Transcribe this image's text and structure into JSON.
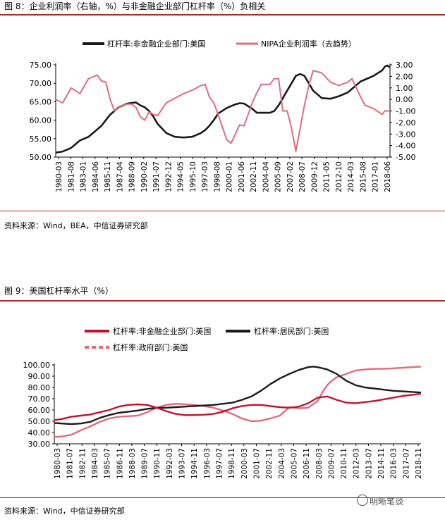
{
  "figure1": {
    "title": "图 8：企业利润率（右轴，%）与非金融企业部门杠杆率（%）负相关",
    "source": "资料来源：Wind，BEA，中信证券研究部"
  },
  "figure2": {
    "title": "图 9：美国杠杆率水平（%）",
    "source": "资料来源：Wind，中信证券研究部"
  },
  "watermark": {
    "text": "明晰笔谈"
  },
  "colors": {
    "black": "#1a1a1a",
    "pink": "#e06b7d",
    "red": "#c8102e",
    "rule": "#b3262d"
  },
  "chart_data": [
    {
      "type": "line",
      "legend_position": "top",
      "grid": false,
      "x_tick_labels": [
        "1980-03",
        "1981-08",
        "1983-01",
        "1984-06",
        "1985-11",
        "1987-04",
        "1988-09",
        "1990-02",
        "1991-07",
        "1992-12",
        "1994-05",
        "1995-10",
        "1997-03",
        "1998-08",
        "2000-01",
        "2001-06",
        "2002-11",
        "2004-04",
        "2005-09",
        "2007-02",
        "2008-07",
        "2009-12",
        "2011-05",
        "2012-10",
        "2014-03",
        "2015-08",
        "2017-01",
        "2018-06"
      ],
      "x": [
        1980.2,
        1981,
        1982,
        1983,
        1984,
        1985,
        1985.5,
        1986,
        1986.5,
        1987,
        1987.5,
        1988,
        1988.5,
        1989,
        1989.5,
        1990,
        1990.5,
        1991,
        1991.5,
        1992,
        1993,
        1994,
        1995,
        1996,
        1997,
        1997.5,
        1998,
        1998.5,
        1999,
        2000,
        2000.5,
        2001,
        2001.5,
        2002,
        2003,
        2003.5,
        2004,
        2005,
        2005.5,
        2006,
        2006.5,
        2007,
        2007.5,
        2008,
        2008.5,
        2009,
        2009.5,
        2010,
        2011,
        2012,
        2013,
        2014,
        2014.5,
        2015,
        2015.5,
        2016,
        2017,
        2018,
        2018.3,
        2018.6,
        2018.9
      ],
      "y_left": {
        "range": [
          50,
          75
        ],
        "ticks": [
          "50.00",
          "55.00",
          "60.00",
          "65.00",
          "70.00",
          "75.00"
        ]
      },
      "y_right": {
        "range": [
          -5,
          3
        ],
        "ticks": [
          "-5.00",
          "-4.00",
          "-3.00",
          "-2.00",
          "-1.00",
          "0.00",
          "1.00",
          "2.00",
          "3.00"
        ]
      },
      "series": [
        {
          "name": "杠杆率:非金融企业部门:美国",
          "axis": "left",
          "color": "#1a1a1a",
          "values": [
            51.2,
            51.5,
            52.5,
            54.5,
            55.5,
            57.5,
            58.5,
            60,
            61.5,
            62.5,
            63.5,
            64,
            64.5,
            64.7,
            64.8,
            64,
            63.5,
            62.5,
            61,
            59,
            56.5,
            55.5,
            55.3,
            55.5,
            56.5,
            57.3,
            58.5,
            60,
            61.8,
            63.3,
            63.8,
            64.3,
            64.6,
            64.5,
            63,
            62,
            62,
            62,
            62.5,
            64,
            66,
            68,
            70,
            72,
            72.5,
            72,
            70,
            68,
            66,
            65.8,
            66.5,
            67.5,
            68.5,
            69.5,
            70.5,
            71,
            72,
            73.5,
            74.5,
            74.8,
            74.3
          ]
        },
        {
          "name": "NIPA企业利润率（去趋势）",
          "axis": "right",
          "color": "#e06b7d",
          "values": [
            0,
            -0.3,
            1,
            0.5,
            1.8,
            2.1,
            1.6,
            1.5,
            0,
            -1,
            -0.7,
            -0.5,
            -0.4,
            -0.4,
            -0.7,
            -1.5,
            -1.8,
            -1.1,
            -1.3,
            -1.4,
            -0.3,
            0.1,
            0.5,
            0.8,
            1.2,
            1.3,
            0.2,
            -0.3,
            -1.3,
            -3.5,
            -3.8,
            -3,
            -2.2,
            -2.3,
            -0.2,
            0.6,
            1.3,
            1.3,
            1.8,
            1.8,
            -1,
            -1,
            -2.5,
            -4.5,
            -2.5,
            -0.5,
            1.2,
            2.5,
            2.3,
            1.5,
            1.2,
            1.5,
            1.8,
            1.0,
            0.2,
            -0.5,
            -0.8,
            -1.3,
            -1.0,
            -1.0,
            -1.0
          ]
        }
      ]
    },
    {
      "type": "line",
      "legend_position": "top",
      "grid": false,
      "x_tick_labels": [
        "1980-03",
        "1981-07",
        "1982-11",
        "1984-03",
        "1985-07",
        "1986-11",
        "1988-03",
        "1989-07",
        "1990-11",
        "1992-03",
        "1993-07",
        "1994-11",
        "1996-03",
        "1997-07",
        "1998-11",
        "2000-03",
        "2001-07",
        "2002-11",
        "2004-03",
        "2005-07",
        "2006-11",
        "2008-03",
        "2009-07",
        "2010-11",
        "2012-03",
        "2013-07",
        "2014-11",
        "2016-03",
        "2017-07",
        "2018-11"
      ],
      "y": {
        "range": [
          30,
          100
        ],
        "ticks": [
          "30.00",
          "40.00",
          "50.00",
          "60.00",
          "70.00",
          "80.00",
          "90.00",
          "100.00"
        ]
      },
      "series": [
        {
          "name": "杠杆率:非金融企业部门:美国",
          "color": "#c8102e",
          "style": "solid",
          "x": [
            1980.2,
            1981,
            1982,
            1983,
            1984,
            1985,
            1986,
            1987,
            1988,
            1989,
            1990,
            1991,
            1992,
            1993,
            1994,
            1995,
            1996,
            1997,
            1998,
            1999,
            2000,
            2001,
            2002,
            2003,
            2004,
            2005,
            2006,
            2007,
            2008,
            2009,
            2010,
            2011,
            2012,
            2013,
            2014,
            2015,
            2016,
            2017,
            2018,
            2018.9
          ],
          "values": [
            51,
            52,
            54,
            55,
            56,
            58,
            60,
            63,
            64.5,
            65,
            64.5,
            62,
            59,
            56.5,
            55.5,
            55.5,
            55.8,
            56.5,
            58.5,
            61.5,
            63.5,
            64.5,
            64.5,
            63.5,
            62.5,
            62,
            63,
            66,
            71,
            72,
            69,
            66.5,
            66,
            67,
            68,
            69.5,
            71,
            72.5,
            73.5,
            74.5
          ]
        },
        {
          "name": "杠杆率:居民部门:美国",
          "color": "#1a1a1a",
          "style": "solid",
          "x": [
            1980.2,
            1981,
            1982,
            1983,
            1984,
            1985,
            1986,
            1987,
            1988,
            1989,
            1990,
            1991,
            1992,
            1993,
            1994,
            1995,
            1996,
            1997,
            1998,
            1999,
            2000,
            2001,
            2002,
            2003,
            2004,
            2005,
            2006,
            2007,
            2007.5,
            2008,
            2009,
            2010,
            2011,
            2012,
            2013,
            2014,
            2015,
            2016,
            2017,
            2018,
            2018.9
          ],
          "values": [
            48.5,
            48,
            47.5,
            48,
            49.5,
            53,
            55.5,
            57.5,
            58.5,
            59.5,
            61,
            62,
            62,
            62.5,
            63,
            63.5,
            64,
            64.5,
            65.5,
            66.5,
            69,
            72,
            77,
            83,
            88,
            92,
            95.5,
            98,
            98.5,
            98,
            96,
            92,
            86,
            82,
            80,
            79,
            78,
            77,
            76.5,
            76,
            75.5
          ]
        },
        {
          "name": "杠杆率:政府部门:美国",
          "color": "#e06b7d",
          "style": "dashed",
          "x": [
            1980.2,
            1981,
            1982,
            1983,
            1984,
            1985,
            1986,
            1987,
            1988,
            1989,
            1990,
            1991,
            1992,
            1993,
            1994,
            1995,
            1996,
            1997,
            1998,
            1999,
            2000,
            2001,
            2002,
            2003,
            2004,
            2005,
            2006,
            2007,
            2008,
            2008.5,
            2009,
            2009.5,
            2010,
            2011,
            2012,
            2013,
            2014,
            2015,
            2016,
            2017,
            2018,
            2018.9
          ],
          "values": [
            36,
            36.5,
            38,
            42,
            45.5,
            49.5,
            52.5,
            54,
            54.5,
            55,
            58,
            62,
            64.5,
            65.5,
            65,
            64.5,
            63.5,
            62,
            59.5,
            56.5,
            52.5,
            50,
            50.5,
            52.5,
            55,
            62.5,
            61.5,
            62,
            68,
            76,
            82,
            86,
            89,
            92,
            95,
            96,
            96.5,
            96.5,
            97,
            97.5,
            98,
            98.5
          ]
        }
      ]
    }
  ]
}
